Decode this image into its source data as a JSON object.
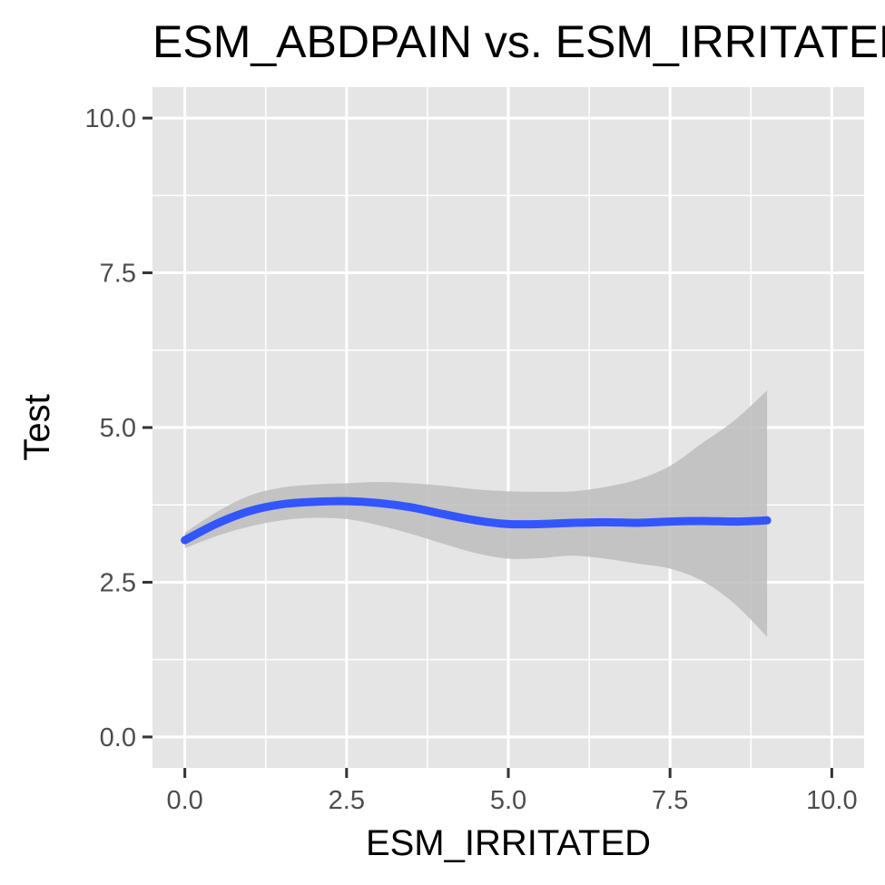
{
  "chart_data": {
    "type": "line",
    "title": "ESM_ABDPAIN vs. ESM_IRRITATED",
    "xlabel": "ESM_IRRITATED",
    "ylabel": "Test",
    "xlim": [
      -0.5,
      10.5
    ],
    "ylim": [
      -0.5,
      10.5
    ],
    "x_ticks": [
      "0.0",
      "2.5",
      "5.0",
      "7.5",
      "10.0"
    ],
    "y_ticks": [
      "0.0",
      "2.5",
      "5.0",
      "7.5",
      "10.0"
    ],
    "x_tick_values": [
      0,
      2.5,
      5,
      7.5,
      10
    ],
    "y_tick_values": [
      0,
      2.5,
      5,
      7.5,
      10
    ],
    "grid": true,
    "panel_color": "#e5e5e5",
    "grid_color": "#ffffff",
    "line_color": "#3355ff",
    "ribbon_color": "#bdbdbd",
    "series": [
      {
        "x": [
          0,
          0.5,
          1.0,
          1.5,
          2.0,
          2.5,
          3.0,
          3.5,
          4.0,
          4.5,
          5.0,
          5.5,
          6.0,
          6.5,
          7.0,
          7.5,
          8.0,
          8.5,
          9.0
        ],
        "y": [
          3.18,
          3.45,
          3.65,
          3.76,
          3.8,
          3.81,
          3.78,
          3.71,
          3.6,
          3.5,
          3.44,
          3.44,
          3.46,
          3.47,
          3.46,
          3.48,
          3.49,
          3.48,
          3.5
        ],
        "ymin": [
          3.05,
          3.25,
          3.4,
          3.5,
          3.54,
          3.52,
          3.42,
          3.28,
          3.12,
          2.97,
          2.88,
          2.89,
          2.93,
          2.88,
          2.8,
          2.72,
          2.52,
          2.15,
          1.62
        ],
        "ymax": [
          3.3,
          3.64,
          3.9,
          4.03,
          4.08,
          4.1,
          4.12,
          4.1,
          4.06,
          4.0,
          3.97,
          3.96,
          3.97,
          4.04,
          4.16,
          4.38,
          4.75,
          5.12,
          5.6
        ]
      }
    ]
  }
}
